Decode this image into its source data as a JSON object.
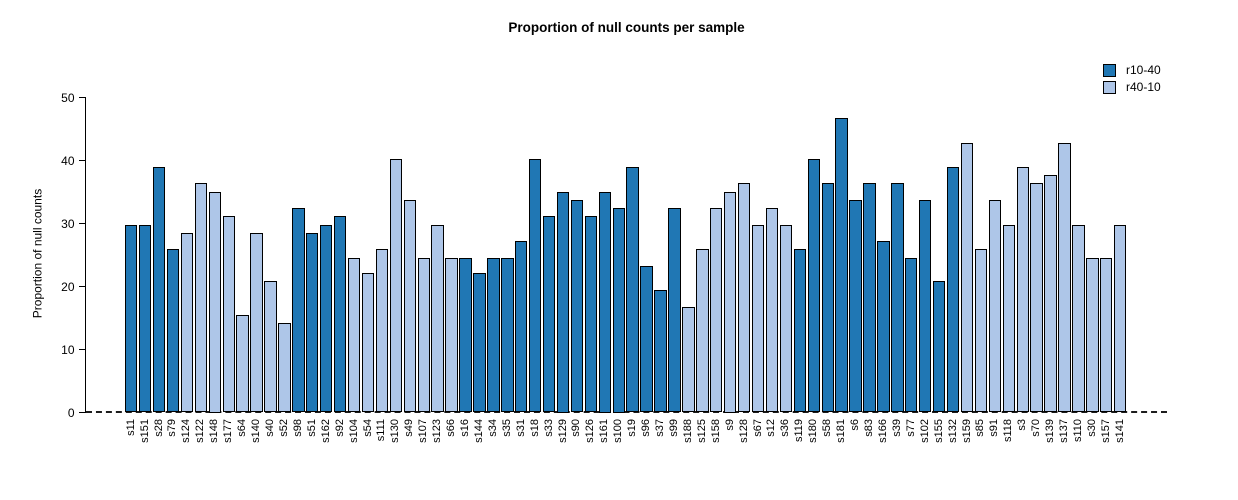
{
  "header": {
    "title": "Proportion of null counts per sample"
  },
  "chart_data": {
    "type": "bar",
    "title": "Proportion of null counts per sample",
    "xlabel": "",
    "ylabel": "Proportion of null counts",
    "ylim": [
      0,
      50
    ],
    "yticks": [
      0,
      10,
      20,
      30,
      40,
      50
    ],
    "grid": false,
    "baseline": {
      "y": 0,
      "style": "dashed",
      "color": "#1c1c1c"
    },
    "legend": {
      "position": "top-right",
      "entries": [
        {
          "label": "r10-40",
          "color": "#2077b4"
        },
        {
          "label": "r40-10",
          "color": "#aec6e8"
        }
      ]
    },
    "bars": [
      {
        "label": "s11",
        "value": 29.7,
        "group": "r10-40"
      },
      {
        "label": "s151",
        "value": 29.7,
        "group": "r10-40"
      },
      {
        "label": "s28",
        "value": 39.0,
        "group": "r10-40"
      },
      {
        "label": "s79",
        "value": 25.9,
        "group": "r10-40"
      },
      {
        "label": "s124",
        "value": 28.5,
        "group": "r40-10"
      },
      {
        "label": "s122",
        "value": 36.4,
        "group": "r40-10"
      },
      {
        "label": "s148",
        "value": 35.0,
        "group": "r40-10"
      },
      {
        "label": "s177",
        "value": 31.2,
        "group": "r40-10"
      },
      {
        "label": "s64",
        "value": 15.5,
        "group": "r40-10"
      },
      {
        "label": "s140",
        "value": 28.5,
        "group": "r40-10"
      },
      {
        "label": "s40",
        "value": 20.8,
        "group": "r40-10"
      },
      {
        "label": "s52",
        "value": 14.2,
        "group": "r40-10"
      },
      {
        "label": "s98",
        "value": 32.4,
        "group": "r10-40"
      },
      {
        "label": "s51",
        "value": 28.5,
        "group": "r10-40"
      },
      {
        "label": "s162",
        "value": 29.7,
        "group": "r10-40"
      },
      {
        "label": "s92",
        "value": 31.2,
        "group": "r10-40"
      },
      {
        "label": "s104",
        "value": 24.6,
        "group": "r40-10"
      },
      {
        "label": "s54",
        "value": 22.1,
        "group": "r40-10"
      },
      {
        "label": "s111",
        "value": 25.9,
        "group": "r40-10"
      },
      {
        "label": "s130",
        "value": 40.2,
        "group": "r40-10"
      },
      {
        "label": "s49",
        "value": 33.8,
        "group": "r40-10"
      },
      {
        "label": "s107",
        "value": 24.5,
        "group": "r40-10"
      },
      {
        "label": "s123",
        "value": 29.7,
        "group": "r40-10"
      },
      {
        "label": "s66",
        "value": 24.5,
        "group": "r40-10"
      },
      {
        "label": "s16",
        "value": 24.5,
        "group": "r10-40"
      },
      {
        "label": "s144",
        "value": 22.1,
        "group": "r10-40"
      },
      {
        "label": "s34",
        "value": 24.5,
        "group": "r10-40"
      },
      {
        "label": "s35",
        "value": 24.5,
        "group": "r10-40"
      },
      {
        "label": "s31",
        "value": 27.2,
        "group": "r10-40"
      },
      {
        "label": "s18",
        "value": 40.2,
        "group": "r10-40"
      },
      {
        "label": "s33",
        "value": 31.2,
        "group": "r10-40"
      },
      {
        "label": "s129",
        "value": 35.0,
        "group": "r10-40"
      },
      {
        "label": "s90",
        "value": 33.8,
        "group": "r10-40"
      },
      {
        "label": "s126",
        "value": 31.2,
        "group": "r10-40"
      },
      {
        "label": "s161",
        "value": 35.0,
        "group": "r10-40"
      },
      {
        "label": "s100",
        "value": 32.5,
        "group": "r10-40"
      },
      {
        "label": "s19",
        "value": 39.0,
        "group": "r10-40"
      },
      {
        "label": "s96",
        "value": 23.3,
        "group": "r10-40"
      },
      {
        "label": "s37",
        "value": 19.4,
        "group": "r10-40"
      },
      {
        "label": "s99",
        "value": 32.4,
        "group": "r10-40"
      },
      {
        "label": "s188",
        "value": 16.7,
        "group": "r40-10"
      },
      {
        "label": "s125",
        "value": 25.9,
        "group": "r40-10"
      },
      {
        "label": "s158",
        "value": 32.4,
        "group": "r40-10"
      },
      {
        "label": "s9",
        "value": 35.0,
        "group": "r40-10"
      },
      {
        "label": "s128",
        "value": 36.4,
        "group": "r40-10"
      },
      {
        "label": "s67",
        "value": 29.7,
        "group": "r40-10"
      },
      {
        "label": "s12",
        "value": 32.4,
        "group": "r40-10"
      },
      {
        "label": "s36",
        "value": 29.7,
        "group": "r40-10"
      },
      {
        "label": "s119",
        "value": 26.0,
        "group": "r10-40"
      },
      {
        "label": "s180",
        "value": 40.2,
        "group": "r10-40"
      },
      {
        "label": "s58",
        "value": 36.4,
        "group": "r10-40"
      },
      {
        "label": "s181",
        "value": 46.8,
        "group": "r10-40"
      },
      {
        "label": "s6",
        "value": 33.8,
        "group": "r10-40"
      },
      {
        "label": "s83",
        "value": 36.4,
        "group": "r10-40"
      },
      {
        "label": "s166",
        "value": 27.2,
        "group": "r10-40"
      },
      {
        "label": "s39",
        "value": 36.4,
        "group": "r10-40"
      },
      {
        "label": "s77",
        "value": 24.5,
        "group": "r10-40"
      },
      {
        "label": "s102",
        "value": 33.8,
        "group": "r10-40"
      },
      {
        "label": "s155",
        "value": 20.8,
        "group": "r10-40"
      },
      {
        "label": "s132",
        "value": 39.0,
        "group": "r10-40"
      },
      {
        "label": "s159",
        "value": 42.8,
        "group": "r40-10"
      },
      {
        "label": "s85",
        "value": 25.9,
        "group": "r40-10"
      },
      {
        "label": "s91",
        "value": 33.8,
        "group": "r40-10"
      },
      {
        "label": "s118",
        "value": 29.7,
        "group": "r40-10"
      },
      {
        "label": "s3",
        "value": 39.0,
        "group": "r40-10"
      },
      {
        "label": "s70",
        "value": 36.4,
        "group": "r40-10"
      },
      {
        "label": "s139",
        "value": 37.7,
        "group": "r40-10"
      },
      {
        "label": "s137",
        "value": 42.8,
        "group": "r40-10"
      },
      {
        "label": "s110",
        "value": 29.7,
        "group": "r40-10"
      },
      {
        "label": "s30",
        "value": 24.5,
        "group": "r40-10"
      },
      {
        "label": "s157",
        "value": 24.5,
        "group": "r40-10"
      },
      {
        "label": "s141",
        "value": 29.7,
        "group": "r40-10"
      }
    ]
  }
}
